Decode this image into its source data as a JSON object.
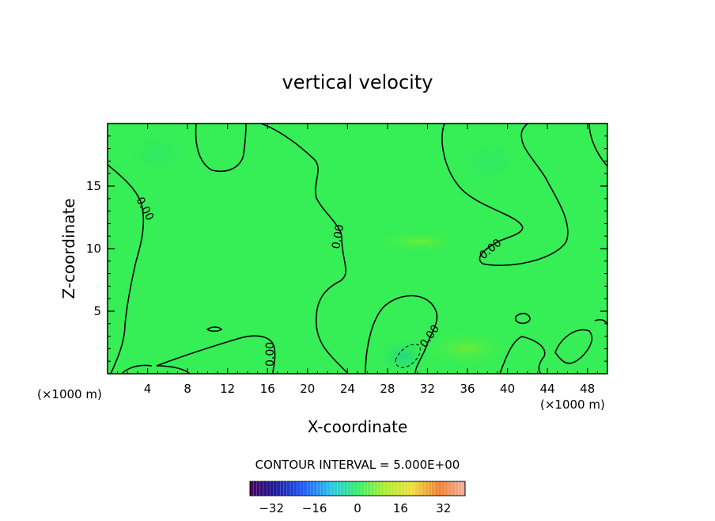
{
  "chart_data": {
    "type": "heatmap",
    "title": "vertical velocity",
    "xlabel": "X-coordinate",
    "ylabel": "Z-coordinate",
    "x_unit": "(×1000 m)",
    "y_unit": "(×1000 m)",
    "xlim": [
      0,
      50
    ],
    "ylim": [
      0,
      20
    ],
    "x_ticks": [
      4,
      8,
      12,
      16,
      20,
      24,
      28,
      32,
      36,
      40,
      44,
      48
    ],
    "y_ticks": [
      5,
      10,
      15
    ],
    "contour_interval_text": "CONTOUR INTERVAL = 5.000E+00",
    "contour_labels": [
      "0.00",
      "0.00",
      "0.00",
      "0.00",
      "0.00"
    ],
    "colorbar": {
      "ticks": [
        -32,
        -16,
        0,
        16,
        32
      ],
      "tick_labels": [
        "−32",
        "−16",
        "0",
        "16",
        "32"
      ],
      "range": [
        -40,
        40
      ],
      "colormap": "rainbow"
    },
    "field_range_approx": [
      -3,
      3
    ]
  }
}
